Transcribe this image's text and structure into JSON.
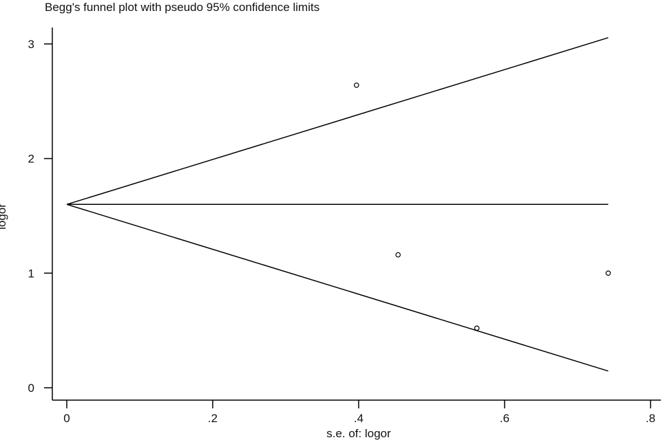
{
  "chart_data": {
    "type": "scatter",
    "title": "Begg's funnel plot with pseudo 95% confidence limits",
    "xlabel": "s.e. of: logor",
    "ylabel": "logor",
    "xlim": [
      0,
      0.8
    ],
    "ylim": [
      0,
      3
    ],
    "xticks": [
      {
        "v": 0,
        "label": "0"
      },
      {
        "v": 0.2,
        "label": ".2"
      },
      {
        "v": 0.4,
        "label": ".4"
      },
      {
        "v": 0.6,
        "label": ".6"
      },
      {
        "v": 0.8,
        "label": ".8"
      }
    ],
    "yticks": [
      {
        "v": 0,
        "label": "0"
      },
      {
        "v": 1,
        "label": "1"
      },
      {
        "v": 2,
        "label": "2"
      },
      {
        "v": 3,
        "label": "3"
      }
    ],
    "grid": false,
    "pooled_estimate": 1.6,
    "funnel_max_se": 0.742,
    "z": 1.96,
    "points": [
      {
        "x": 0.397,
        "y": 2.64
      },
      {
        "x": 0.454,
        "y": 1.16
      },
      {
        "x": 0.562,
        "y": 0.52
      },
      {
        "x": 0.742,
        "y": 1.0
      }
    ],
    "colors": {
      "line": "#000000",
      "marker": "#000000"
    }
  }
}
